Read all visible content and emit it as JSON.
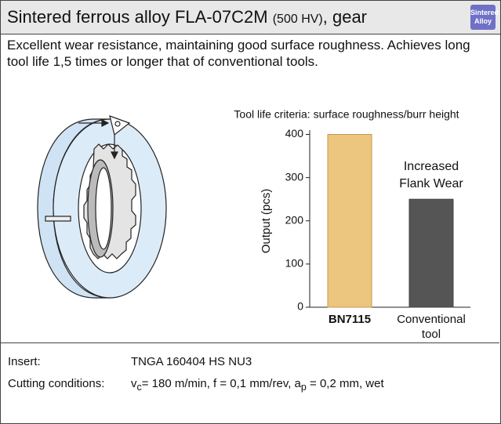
{
  "header": {
    "title": "Sintered ferrous alloy FLA-07C2M",
    "hardness": "(500 HV)",
    "suffix": ", gear",
    "badge": [
      "Sintered",
      "Alloy"
    ]
  },
  "description": "Excellent wear resistance, maintaining good surface roughness. Achieves long tool life 1,5 times or longer that of conventional tools.",
  "chart_data": {
    "type": "bar",
    "title": "Tool life criteria: surface roughness/burr height",
    "y_label": "Output (pcs)",
    "categories": [
      "BN7115",
      "Conventional tool"
    ],
    "values": [
      400,
      250
    ],
    "colors": [
      "#ecc57f",
      "#555555"
    ],
    "ylim": [
      0,
      410
    ],
    "yticks": [
      0,
      100,
      200,
      300,
      400
    ],
    "annotation": "Increased Flank Wear"
  },
  "specs": [
    {
      "label": "Insert:",
      "value": [
        {
          "text": "TNGA 160404 HS NU3"
        }
      ]
    },
    {
      "label": "Cutting conditions:",
      "value": [
        {
          "text": "v"
        },
        {
          "text": "c",
          "sub": true
        },
        {
          "text": "= 180 m/min, f = 0,1 mm/rev, a"
        },
        {
          "text": "p",
          "sub": true
        },
        {
          "text": " = 0,2 mm, wet"
        }
      ]
    }
  ]
}
